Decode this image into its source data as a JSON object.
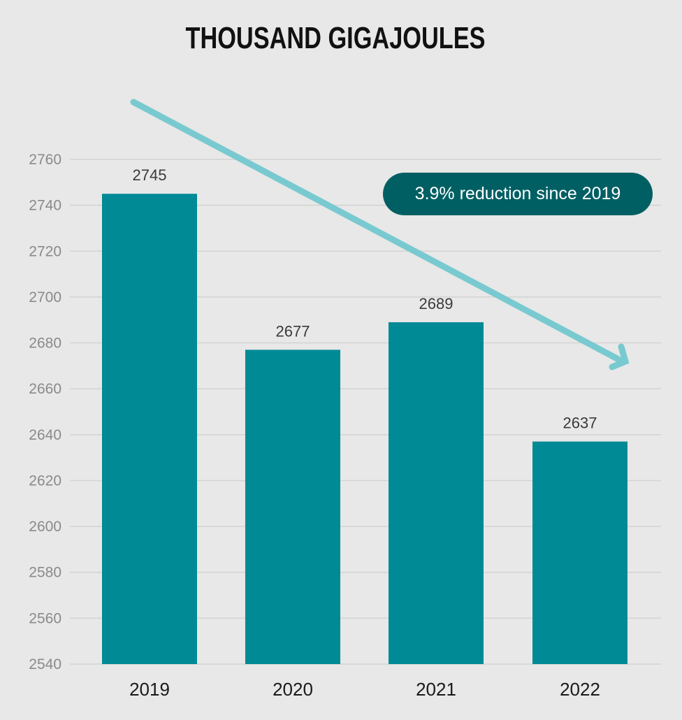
{
  "chart_data": {
    "type": "bar",
    "title": "THOUSAND GIGAJOULES",
    "xlabel": "",
    "ylabel": "",
    "categories": [
      "2019",
      "2020",
      "2021",
      "2022"
    ],
    "values": [
      2745,
      2677,
      2689,
      2637
    ],
    "value_labels": [
      "2745",
      "2677",
      "2689",
      "2637"
    ],
    "ylim": [
      2540,
      2760
    ],
    "yticks": [
      2540,
      2560,
      2580,
      2600,
      2620,
      2640,
      2660,
      2680,
      2700,
      2720,
      2740,
      2760
    ],
    "grid": true,
    "legend": "none",
    "annotation": "3.9% reduction since 2019",
    "trend_arrow": "downward",
    "colors": {
      "background": "#e7e8e7",
      "bar": "#008a96",
      "grid": "#d2d3d2",
      "arrow": "#79c9d0",
      "annotation_bg": "#005f63",
      "annotation_text": "#ffffff"
    }
  }
}
